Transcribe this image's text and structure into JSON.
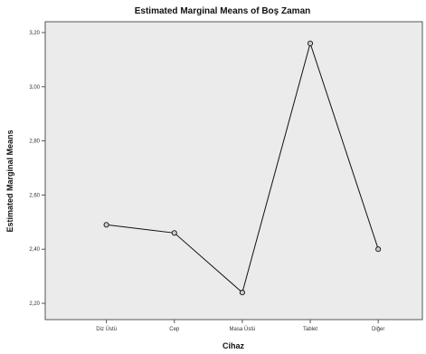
{
  "chart_data": {
    "type": "line",
    "title": "Estimated Marginal Means of Boş Zaman",
    "xlabel": "Cihaz",
    "ylabel": "Estimated Marginal Means",
    "categories": [
      "Diz Üstü",
      "Cep",
      "Masa Üstü",
      "Tablet",
      "Diğer"
    ],
    "series": [
      {
        "values": [
          2.49,
          2.46,
          2.24,
          3.16,
          2.4
        ]
      }
    ],
    "ylim": [
      2.14,
      3.24
    ],
    "yticks": [
      2.2,
      2.4,
      2.6,
      2.8,
      3.0,
      3.2
    ],
    "ytick_labels": [
      "2,20",
      "2,40",
      "2,60",
      "2,80",
      "3,00",
      "3,20"
    ],
    "grid": false,
    "legend": "none",
    "colors": {
      "plot_background": "#ebebeb",
      "line": "#111111",
      "marker_fill": "#cccccc",
      "frame": "#555555"
    }
  }
}
